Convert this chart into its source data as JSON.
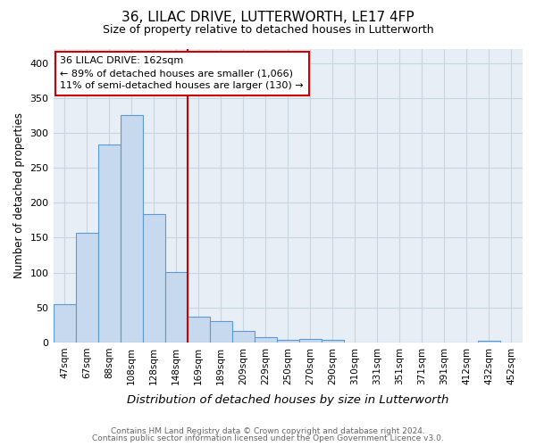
{
  "title1": "36, LILAC DRIVE, LUTTERWORTH, LE17 4FP",
  "title2": "Size of property relative to detached houses in Lutterworth",
  "xlabel": "Distribution of detached houses by size in Lutterworth",
  "ylabel": "Number of detached properties",
  "bar_labels": [
    "47sqm",
    "67sqm",
    "88sqm",
    "108sqm",
    "128sqm",
    "148sqm",
    "169sqm",
    "189sqm",
    "209sqm",
    "229sqm",
    "250sqm",
    "270sqm",
    "290sqm",
    "310sqm",
    "331sqm",
    "351sqm",
    "371sqm",
    "391sqm",
    "412sqm",
    "432sqm",
    "452sqm"
  ],
  "bar_values": [
    55,
    157,
    283,
    325,
    184,
    101,
    37,
    31,
    17,
    7,
    4,
    5,
    4,
    0,
    0,
    0,
    0,
    0,
    0,
    3,
    0
  ],
  "bar_color": "#c6d9ee",
  "bar_edge_color": "#5b9bd5",
  "vline_color": "#cc0000",
  "annotation_lines": [
    "36 LILAC DRIVE: 162sqm",
    "← 89% of detached houses are smaller (1,066)",
    "11% of semi-detached houses are larger (130) →"
  ],
  "annotation_box_color": "#ffffff",
  "annotation_box_edge": "#cc0000",
  "ylim": [
    0,
    420
  ],
  "yticks": [
    0,
    50,
    100,
    150,
    200,
    250,
    300,
    350,
    400
  ],
  "footnote1": "Contains HM Land Registry data © Crown copyright and database right 2024.",
  "footnote2": "Contains public sector information licensed under the Open Government Licence v3.0.",
  "bg_color": "#ffffff",
  "plot_bg_color": "#e8eef5",
  "grid_color": "#c8d4e0"
}
